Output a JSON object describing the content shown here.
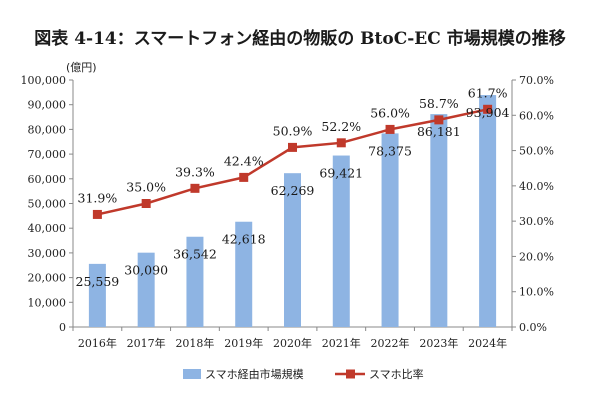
{
  "chart_data": {
    "type": "bar",
    "title": "図表 4-14：スマートフォン経由の物販の BtoC-EC 市場規模の推移",
    "categories": [
      "2016年",
      "2017年",
      "2018年",
      "2019年",
      "2020年",
      "2021年",
      "2022年",
      "2023年",
      "2024年"
    ],
    "y_unit_label": "(億円)",
    "series": [
      {
        "name": "スマホ経由市場規模",
        "type": "bar",
        "axis": "left",
        "color": "#8EB4E3",
        "values": [
          25559,
          30090,
          36542,
          42618,
          62269,
          69421,
          78375,
          86181,
          93904
        ],
        "labels": [
          "25,559",
          "30,090",
          "36,542",
          "42,618",
          "62,269",
          "69,421",
          "78,375",
          "86,181",
          "93,904"
        ]
      },
      {
        "name": "スマホ比率",
        "type": "line",
        "axis": "right",
        "color": "#C0392B",
        "values": [
          31.9,
          35.0,
          39.3,
          42.4,
          50.9,
          52.2,
          56.0,
          58.7,
          61.7
        ],
        "labels": [
          "31.9%",
          "35.0%",
          "39.3%",
          "42.4%",
          "50.9%",
          "52.2%",
          "56.0%",
          "58.7%",
          "61.7%"
        ]
      }
    ],
    "y_left": {
      "range": [
        0,
        100000
      ],
      "ticks": [
        "0",
        "10,000",
        "20,000",
        "30,000",
        "40,000",
        "50,000",
        "60,000",
        "70,000",
        "80,000",
        "90,000",
        "100,000"
      ]
    },
    "y_right": {
      "range": [
        0,
        70
      ],
      "ticks": [
        "0.0%",
        "10.0%",
        "20.0%",
        "30.0%",
        "40.0%",
        "50.0%",
        "60.0%",
        "70.0%"
      ]
    },
    "grid": false,
    "legend_position": "bottom"
  }
}
